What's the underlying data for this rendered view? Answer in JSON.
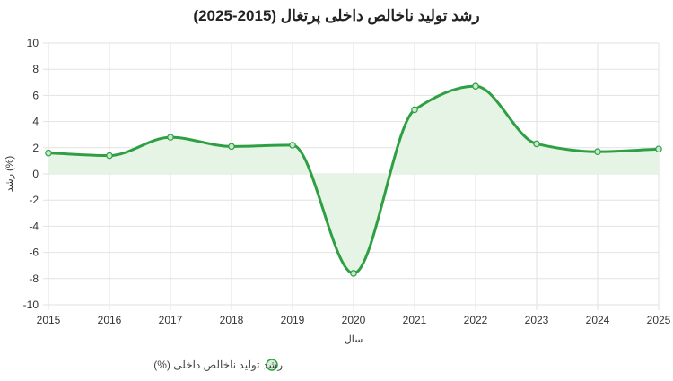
{
  "chart_data": {
    "type": "line",
    "title": "رشد تولید ناخالص داخلی پرتغال (2015-2025)",
    "xlabel": "سال",
    "ylabel": "رشد (%)",
    "x": [
      2015,
      2016,
      2017,
      2018,
      2019,
      2020,
      2021,
      2022,
      2023,
      2024,
      2025
    ],
    "categories": [
      "2015",
      "2016",
      "2017",
      "2018",
      "2019",
      "2020",
      "2021",
      "2022",
      "2023",
      "2024",
      "2025"
    ],
    "series": [
      {
        "name": "رشد تولید ناخالص داخلی (%)",
        "values": [
          1.6,
          1.4,
          2.8,
          2.1,
          2.2,
          -7.6,
          4.9,
          6.7,
          2.3,
          1.7,
          1.9
        ],
        "color": "#2ea043",
        "fill": "#e6f4e6"
      }
    ],
    "ylim": [
      -10,
      10
    ],
    "yticks": [
      -10,
      -8,
      -6,
      -4,
      -2,
      0,
      2,
      4,
      6,
      8,
      10
    ],
    "grid": true,
    "legend": "bottom"
  }
}
